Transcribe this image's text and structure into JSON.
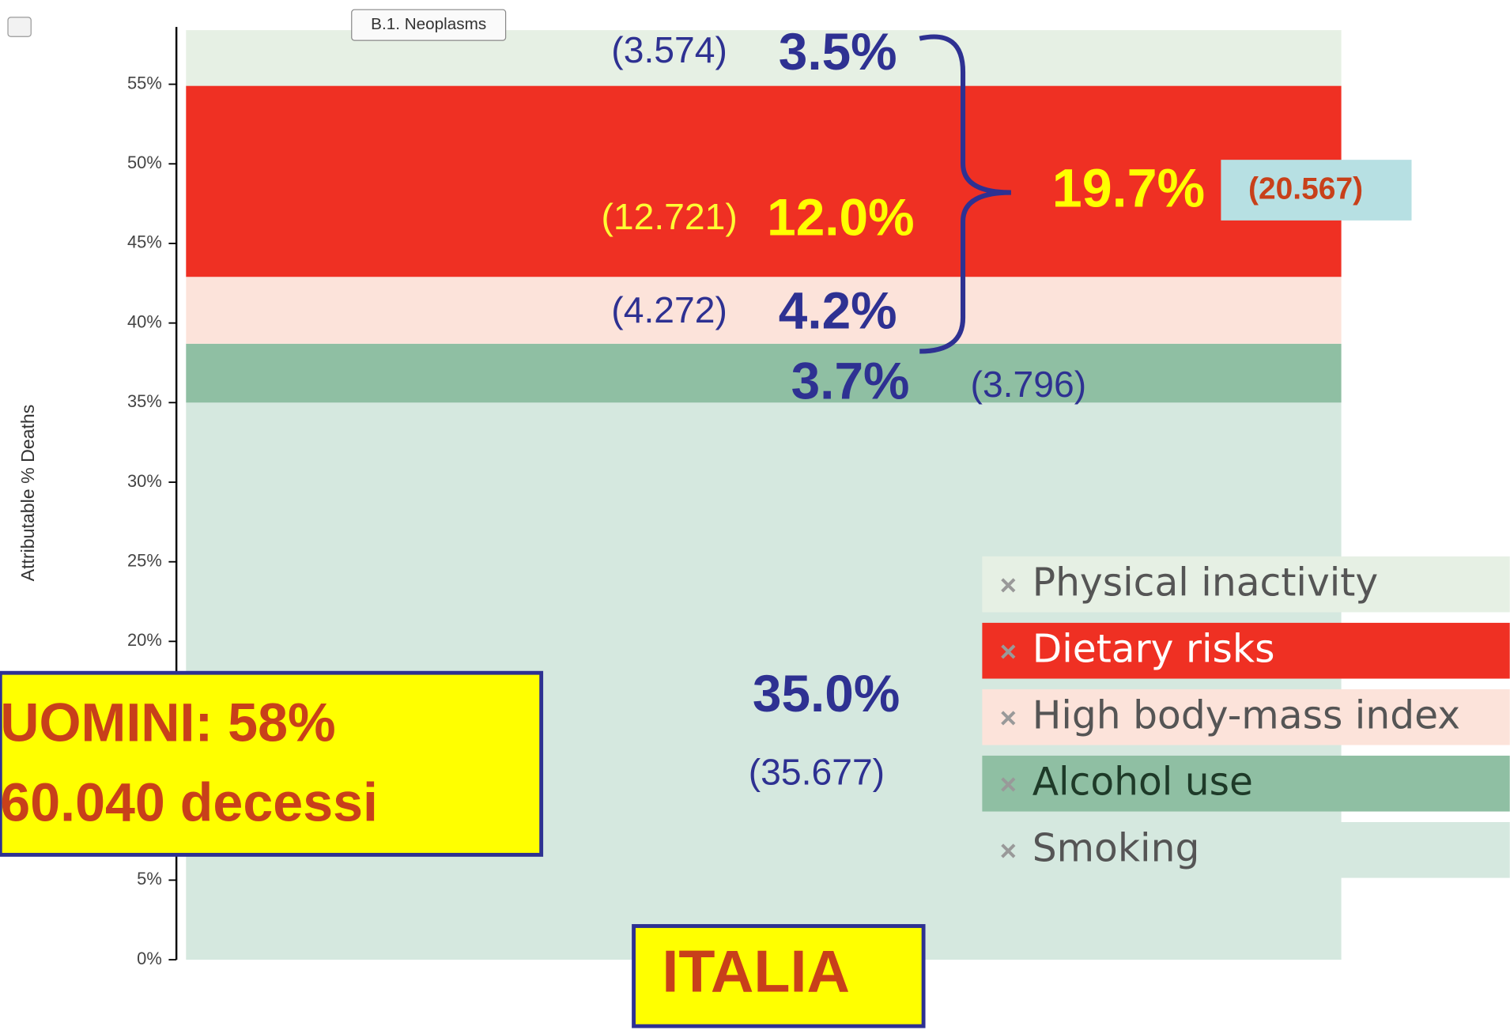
{
  "chart_data": {
    "type": "bar",
    "stacked": true,
    "button": "B.1. Neoplasms",
    "y_label": "Attributable % Deaths",
    "categories": [
      null
    ],
    "ylim": [
      0,
      58.6
    ],
    "yticks": [
      {
        "value": 0,
        "label": "0%"
      },
      {
        "value": 5,
        "label": "5%"
      },
      {
        "value": 10,
        "label": "10%"
      },
      {
        "value": 15,
        "label": "15%"
      },
      {
        "value": 20,
        "label": "20%"
      },
      {
        "value": 25,
        "label": "25%"
      },
      {
        "value": 30,
        "label": "30%"
      },
      {
        "value": 35,
        "label": "35%"
      },
      {
        "value": 40,
        "label": "40%"
      },
      {
        "value": 45,
        "label": "45%"
      },
      {
        "value": 50,
        "label": "50%"
      },
      {
        "value": 55,
        "label": "55%"
      }
    ],
    "legend": "right",
    "series": [
      {
        "name": "Smoking",
        "color": "#d5e8df",
        "values": [
          35.0
        ],
        "value_labels": [
          "35.0%"
        ],
        "deaths_labels": [
          "(35.677)"
        ]
      },
      {
        "name": "Alcohol use",
        "color": "#8fbfa3",
        "values": [
          3.7
        ],
        "value_labels": [
          "3.7%"
        ],
        "deaths_labels": [
          "(3.796)"
        ]
      },
      {
        "name": "High body-mass index",
        "color": "#fce3da",
        "values": [
          4.2
        ],
        "value_labels": [
          "4.2%"
        ],
        "deaths_labels": [
          "(4.272)"
        ]
      },
      {
        "name": "Dietary risks",
        "color": "#ef3023",
        "values": [
          12.0
        ],
        "value_labels": [
          "12.0%"
        ],
        "deaths_labels": [
          "(12.721)"
        ]
      },
      {
        "name": "Physical inactivity",
        "color": "#e6f0e4",
        "values": [
          3.5
        ],
        "value_labels": [
          "3.5%"
        ],
        "deaths_labels": [
          "(3.574)"
        ]
      }
    ],
    "annotations": {
      "total_label": "19.7%",
      "total_deaths": "(20.567)",
      "summary": [
        "UOMINI: 58%",
        "60.040 decessi"
      ],
      "country": "ITALIA"
    }
  }
}
